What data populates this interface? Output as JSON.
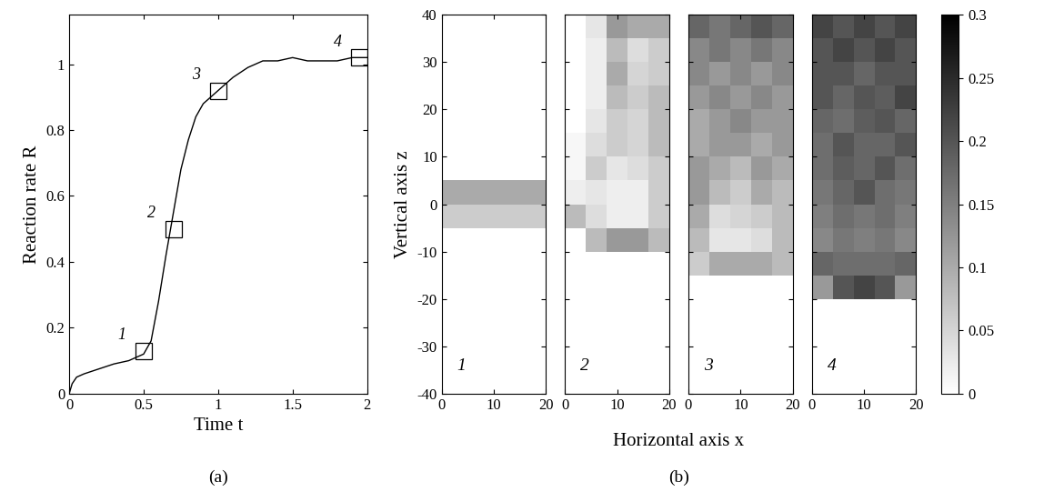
{
  "chart_data": [
    {
      "type": "line",
      "caption": "(a)",
      "xlabel": "Time t",
      "ylabel": "Reaction rate R",
      "xlim": [
        0,
        2
      ],
      "xticks": [
        0,
        0.5,
        1,
        1.5,
        2
      ],
      "ylim": [
        0,
        1.15
      ],
      "yticks": [
        0,
        0.2,
        0.4,
        0.6,
        0.8,
        1
      ],
      "series": [
        {
          "name": "R",
          "color": "#000000",
          "line_style": "solid",
          "x": [
            0,
            0.02,
            0.05,
            0.1,
            0.2,
            0.3,
            0.4,
            0.5,
            0.55,
            0.6,
            0.65,
            0.7,
            0.75,
            0.8,
            0.85,
            0.9,
            1.0,
            1.1,
            1.2,
            1.3,
            1.4,
            1.5,
            1.6,
            1.7,
            1.8,
            1.9,
            1.95,
            2.0
          ],
          "values": [
            0,
            0.03,
            0.05,
            0.06,
            0.075,
            0.09,
            0.1,
            0.12,
            0.16,
            0.28,
            0.42,
            0.55,
            0.68,
            0.77,
            0.84,
            0.88,
            0.92,
            0.96,
            0.99,
            1.01,
            1.01,
            1.02,
            1.01,
            1.01,
            1.01,
            1.02,
            1.02,
            1.02
          ]
        }
      ],
      "markers": {
        "marker": "square",
        "x": [
          0.5,
          0.7,
          1.0,
          1.95
        ],
        "y": [
          0.13,
          0.5,
          0.92,
          1.02
        ],
        "labels": [
          "1",
          "2",
          "3",
          "4"
        ]
      }
    },
    {
      "type": "heatmap",
      "panel_label": "1",
      "tick_labels": true,
      "cells": [
        [
          0,
          0,
          0,
          0,
          0
        ],
        [
          0,
          0,
          0,
          0,
          0
        ],
        [
          0,
          0,
          0,
          0,
          0
        ],
        [
          0,
          0,
          0,
          0,
          0
        ],
        [
          0,
          0,
          0,
          0,
          0
        ],
        [
          0,
          0,
          0,
          0,
          0
        ],
        [
          0,
          0,
          0,
          0,
          0
        ],
        [
          0.06,
          0.06,
          0.06,
          0.06,
          0.06
        ],
        [
          0.1,
          0.1,
          0.1,
          0.1,
          0.1
        ],
        [
          0,
          0,
          0,
          0,
          0
        ],
        [
          0,
          0,
          0,
          0,
          0
        ],
        [
          0,
          0,
          0,
          0,
          0
        ],
        [
          0,
          0,
          0,
          0,
          0
        ],
        [
          0,
          0,
          0,
          0,
          0
        ],
        [
          0,
          0,
          0,
          0,
          0
        ],
        [
          0,
          0,
          0,
          0,
          0
        ]
      ]
    },
    {
      "type": "heatmap",
      "panel_label": "2",
      "tick_labels": "x",
      "cells": [
        [
          0,
          0,
          0,
          0,
          0
        ],
        [
          0,
          0,
          0,
          0,
          0
        ],
        [
          0,
          0,
          0,
          0,
          0
        ],
        [
          0,
          0,
          0,
          0,
          0
        ],
        [
          0,
          0,
          0,
          0,
          0
        ],
        [
          0,
          0,
          0,
          0,
          0
        ],
        [
          0,
          0.08,
          0.12,
          0.12,
          0.08
        ],
        [
          0.08,
          0.04,
          0.02,
          0.02,
          0.06
        ],
        [
          0.02,
          0.03,
          0.02,
          0.02,
          0.06
        ],
        [
          0.01,
          0.06,
          0.03,
          0.04,
          0.06
        ],
        [
          0.01,
          0.04,
          0.06,
          0.05,
          0.08
        ],
        [
          0,
          0.03,
          0.06,
          0.05,
          0.08
        ],
        [
          0,
          0.02,
          0.08,
          0.06,
          0.08
        ],
        [
          0,
          0.02,
          0.1,
          0.05,
          0.06
        ],
        [
          0,
          0.02,
          0.08,
          0.04,
          0.06
        ],
        [
          0,
          0.03,
          0.12,
          0.1,
          0.1
        ]
      ]
    },
    {
      "type": "heatmap",
      "panel_label": "3",
      "tick_labels": "x",
      "cells": [
        [
          0,
          0,
          0,
          0,
          0
        ],
        [
          0,
          0,
          0,
          0,
          0
        ],
        [
          0,
          0,
          0,
          0,
          0
        ],
        [
          0,
          0,
          0,
          0,
          0
        ],
        [
          0,
          0,
          0,
          0,
          0
        ],
        [
          0.06,
          0.1,
          0.1,
          0.1,
          0.08
        ],
        [
          0.08,
          0.03,
          0.03,
          0.04,
          0.08
        ],
        [
          0.1,
          0.04,
          0.05,
          0.06,
          0.08
        ],
        [
          0.12,
          0.08,
          0.06,
          0.1,
          0.08
        ],
        [
          0.12,
          0.1,
          0.08,
          0.12,
          0.1
        ],
        [
          0.1,
          0.12,
          0.12,
          0.1,
          0.12
        ],
        [
          0.1,
          0.12,
          0.14,
          0.12,
          0.12
        ],
        [
          0.12,
          0.14,
          0.12,
          0.14,
          0.12
        ],
        [
          0.14,
          0.12,
          0.14,
          0.12,
          0.14
        ],
        [
          0.14,
          0.16,
          0.14,
          0.16,
          0.14
        ],
        [
          0.18,
          0.16,
          0.18,
          0.2,
          0.18
        ]
      ]
    },
    {
      "type": "heatmap",
      "panel_label": "4",
      "tick_labels": "x",
      "cells": [
        [
          0,
          0,
          0,
          0,
          0
        ],
        [
          0,
          0,
          0,
          0,
          0
        ],
        [
          0,
          0,
          0,
          0,
          0
        ],
        [
          0,
          0,
          0,
          0,
          0
        ],
        [
          0.12,
          0.2,
          0.22,
          0.2,
          0.12
        ],
        [
          0.18,
          0.17,
          0.17,
          0.17,
          0.18
        ],
        [
          0.14,
          0.16,
          0.15,
          0.16,
          0.14
        ],
        [
          0.15,
          0.17,
          0.16,
          0.17,
          0.15
        ],
        [
          0.16,
          0.18,
          0.2,
          0.17,
          0.16
        ],
        [
          0.17,
          0.19,
          0.18,
          0.2,
          0.17
        ],
        [
          0.17,
          0.2,
          0.18,
          0.18,
          0.2
        ],
        [
          0.18,
          0.17,
          0.19,
          0.2,
          0.18
        ],
        [
          0.2,
          0.18,
          0.2,
          0.19,
          0.22
        ],
        [
          0.2,
          0.2,
          0.18,
          0.2,
          0.2
        ],
        [
          0.2,
          0.22,
          0.2,
          0.22,
          0.2
        ],
        [
          0.22,
          0.2,
          0.22,
          0.2,
          0.22
        ]
      ]
    }
  ],
  "heatmap_shared": {
    "caption": "(b)",
    "xlabel": "Horizontal axis x",
    "ylabel": "Vertical axis z",
    "x_edges": [
      0,
      4,
      8,
      12,
      16,
      20
    ],
    "z_edges": [
      -40,
      -35,
      -30,
      -25,
      -20,
      -15,
      -10,
      -5,
      0,
      5,
      10,
      15,
      20,
      25,
      30,
      35,
      40
    ],
    "xlim": [
      0,
      20
    ],
    "xticks": [
      0,
      10,
      20
    ],
    "ylim": [
      -40,
      40
    ],
    "yticks": [
      -40,
      -30,
      -20,
      -10,
      0,
      10,
      20,
      30,
      40
    ],
    "colorbar": {
      "range": [
        0,
        0.3
      ],
      "ticks": [
        0,
        0.05,
        0.1,
        0.15,
        0.2,
        0.25,
        0.3
      ]
    }
  }
}
